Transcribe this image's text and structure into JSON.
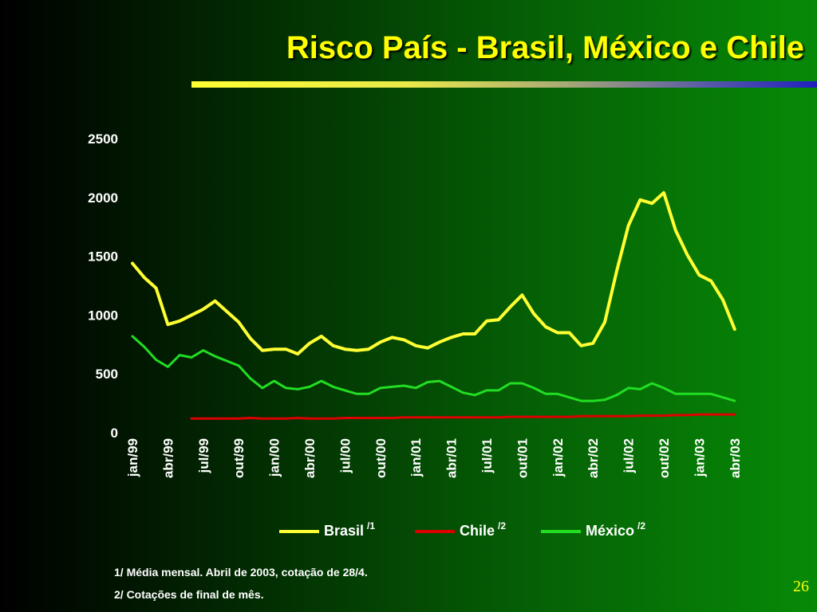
{
  "title": "Risco País - Brasil, México e Chile",
  "colors": {
    "brasil": "#ffff33",
    "chile": "#dd0000",
    "mexico": "#22dd22",
    "title": "#ffff00"
  },
  "legend": [
    {
      "label": "Brasil",
      "note": "/1"
    },
    {
      "label": "Chile",
      "note": "/2"
    },
    {
      "label": "México",
      "note": "/2"
    }
  ],
  "footnotes": [
    "1/ Média mensal. Abril de 2003, cotação de 28/4.",
    "2/ Cotações de final de mês."
  ],
  "page_number": "26",
  "chart_data": {
    "type": "line",
    "title": "Risco País - Brasil, México e Chile",
    "xlabel": "",
    "ylabel": "",
    "ylim": [
      0,
      2500
    ],
    "yticks": [
      0,
      500,
      1000,
      1500,
      2000,
      2500
    ],
    "x_tick_labels": [
      "jan/99",
      "abr/99",
      "jul/99",
      "out/99",
      "jan/00",
      "abr/00",
      "jul/00",
      "out/00",
      "jan/01",
      "abr/01",
      "jul/01",
      "out/01",
      "jan/02",
      "abr/02",
      "jul/02",
      "out/02",
      "jan/03",
      "abr/03"
    ],
    "x": [
      "jan/99",
      "fev/99",
      "mar/99",
      "abr/99",
      "mai/99",
      "jun/99",
      "jul/99",
      "ago/99",
      "set/99",
      "out/99",
      "nov/99",
      "dez/99",
      "jan/00",
      "fev/00",
      "mar/00",
      "abr/00",
      "mai/00",
      "jun/00",
      "jul/00",
      "ago/00",
      "set/00",
      "out/00",
      "nov/00",
      "dez/00",
      "jan/01",
      "fev/01",
      "mar/01",
      "abr/01",
      "mai/01",
      "jun/01",
      "jul/01",
      "ago/01",
      "set/01",
      "out/01",
      "nov/01",
      "dez/01",
      "jan/02",
      "fev/02",
      "mar/02",
      "abr/02",
      "mai/02",
      "jun/02",
      "jul/02",
      "ago/02",
      "set/02",
      "out/02",
      "nov/02",
      "dez/02",
      "jan/03",
      "fev/03",
      "mar/03",
      "abr/03"
    ],
    "grid": false,
    "legend_position": "bottom",
    "series": [
      {
        "name": "Brasil",
        "color": "#ffff33",
        "values": [
          1440,
          1320,
          1230,
          920,
          950,
          1000,
          1050,
          1120,
          1030,
          940,
          800,
          700,
          710,
          710,
          670,
          760,
          820,
          740,
          710,
          700,
          710,
          770,
          810,
          790,
          740,
          720,
          770,
          810,
          840,
          840,
          950,
          960,
          1070,
          1170,
          1010,
          900,
          850,
          850,
          740,
          760,
          940,
          1370,
          1760,
          1980,
          1950,
          2040,
          1720,
          1510,
          1340,
          1290,
          1130,
          880
        ]
      },
      {
        "name": "Chile",
        "color": "#dd0000",
        "values": [
          null,
          null,
          null,
          null,
          null,
          120,
          120,
          120,
          120,
          120,
          125,
          120,
          120,
          120,
          125,
          120,
          120,
          120,
          125,
          125,
          125,
          125,
          125,
          130,
          130,
          130,
          130,
          130,
          130,
          130,
          130,
          130,
          135,
          135,
          135,
          135,
          135,
          135,
          140,
          140,
          140,
          140,
          140,
          145,
          145,
          145,
          150,
          150,
          155,
          155,
          155,
          155
        ]
      },
      {
        "name": "México",
        "color": "#22dd22",
        "values": [
          820,
          730,
          620,
          560,
          660,
          640,
          700,
          650,
          610,
          570,
          460,
          380,
          440,
          380,
          370,
          390,
          440,
          390,
          360,
          330,
          330,
          380,
          390,
          400,
          380,
          430,
          440,
          390,
          340,
          320,
          360,
          360,
          420,
          420,
          380,
          330,
          330,
          300,
          270,
          270,
          280,
          320,
          380,
          370,
          420,
          380,
          330,
          330,
          330,
          330,
          300,
          270
        ]
      }
    ]
  }
}
